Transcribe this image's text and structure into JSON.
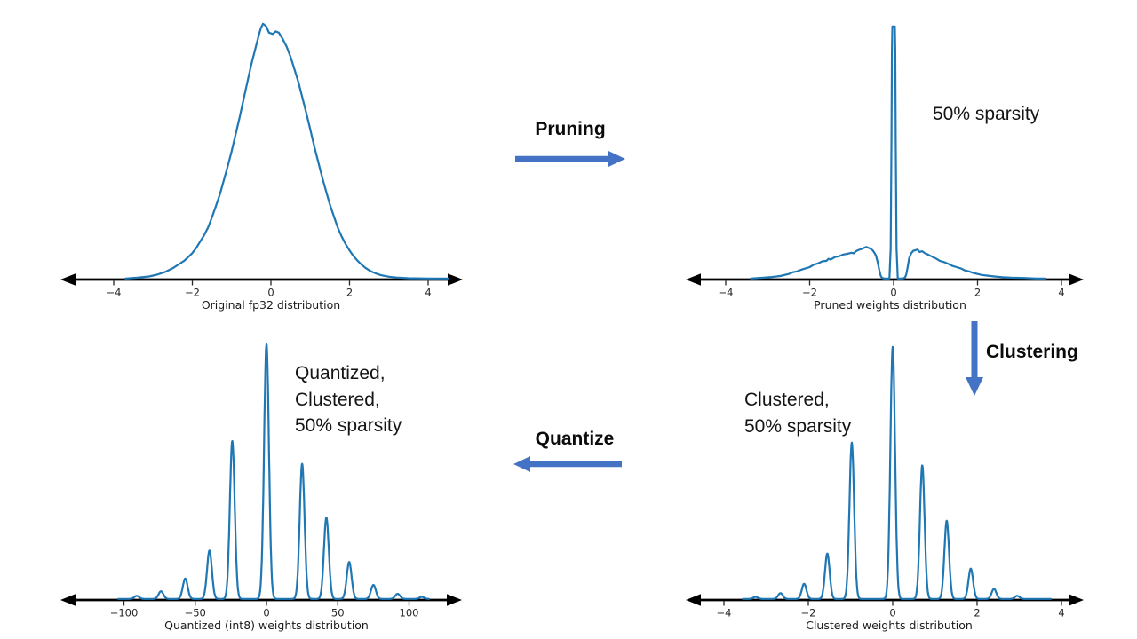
{
  "colors": {
    "curve": "#1f77b4",
    "arrow": "#4472c4",
    "axis": "#000000",
    "chart_text": "#262626"
  },
  "flow": {
    "pruning_label": "Pruning",
    "clustering_label": "Clustering",
    "quantize_label": "Quantize"
  },
  "chart_data": [
    {
      "id": "original",
      "type": "line",
      "xlabel": "Original fp32 distribution",
      "xticks": [
        -4,
        -2,
        0,
        2,
        4
      ],
      "xtick_labels": [
        "−4",
        "−2",
        "0",
        "2",
        "4"
      ],
      "xlim": [
        -5.3,
        4.9
      ],
      "ylim": [
        0,
        1.05
      ],
      "grid": false,
      "curve": {
        "kind": "points",
        "points": [
          [
            -3.7,
            0
          ],
          [
            -3.4,
            0.003
          ],
          [
            -3.1,
            0.008
          ],
          [
            -2.9,
            0.015
          ],
          [
            -2.7,
            0.025
          ],
          [
            -2.5,
            0.04
          ],
          [
            -2.35,
            0.055
          ],
          [
            -2.2,
            0.07
          ],
          [
            -2.1,
            0.085
          ],
          [
            -2.0,
            0.1
          ],
          [
            -1.9,
            0.12
          ],
          [
            -1.8,
            0.145
          ],
          [
            -1.7,
            0.17
          ],
          [
            -1.6,
            0.2
          ],
          [
            -1.5,
            0.24
          ],
          [
            -1.4,
            0.285
          ],
          [
            -1.3,
            0.33
          ],
          [
            -1.2,
            0.385
          ],
          [
            -1.1,
            0.44
          ],
          [
            -1.0,
            0.5
          ],
          [
            -0.9,
            0.565
          ],
          [
            -0.8,
            0.63
          ],
          [
            -0.7,
            0.7
          ],
          [
            -0.6,
            0.77
          ],
          [
            -0.5,
            0.84
          ],
          [
            -0.4,
            0.9
          ],
          [
            -0.3,
            0.96
          ],
          [
            -0.25,
            0.985
          ],
          [
            -0.2,
            1.0
          ],
          [
            -0.12,
            0.99
          ],
          [
            -0.05,
            0.965
          ],
          [
            0.05,
            0.96
          ],
          [
            0.12,
            0.97
          ],
          [
            0.2,
            0.965
          ],
          [
            0.3,
            0.94
          ],
          [
            0.4,
            0.91
          ],
          [
            0.5,
            0.87
          ],
          [
            0.6,
            0.82
          ],
          [
            0.7,
            0.77
          ],
          [
            0.8,
            0.71
          ],
          [
            0.9,
            0.65
          ],
          [
            1.0,
            0.585
          ],
          [
            1.1,
            0.52
          ],
          [
            1.2,
            0.46
          ],
          [
            1.3,
            0.4
          ],
          [
            1.4,
            0.345
          ],
          [
            1.5,
            0.29
          ],
          [
            1.6,
            0.245
          ],
          [
            1.7,
            0.2
          ],
          [
            1.8,
            0.165
          ],
          [
            1.9,
            0.135
          ],
          [
            2.0,
            0.11
          ],
          [
            2.1,
            0.088
          ],
          [
            2.2,
            0.07
          ],
          [
            2.3,
            0.055
          ],
          [
            2.4,
            0.042
          ],
          [
            2.5,
            0.032
          ],
          [
            2.6,
            0.024
          ],
          [
            2.7,
            0.018
          ],
          [
            2.8,
            0.013
          ],
          [
            3.0,
            0.007
          ],
          [
            3.2,
            0.004
          ],
          [
            3.5,
            0.001
          ],
          [
            4.0,
            0
          ],
          [
            4.5,
            0
          ]
        ]
      }
    },
    {
      "id": "pruned",
      "type": "line",
      "xlabel": "Pruned weights distribution",
      "annotation": {
        "lines": [
          "50% sparsity"
        ]
      },
      "xticks": [
        -4,
        -2,
        0,
        2,
        4
      ],
      "xtick_labels": [
        "−4",
        "−2",
        "0",
        "2",
        "4"
      ],
      "xlim": [
        -5.0,
        4.5
      ],
      "ylim": [
        0,
        1.05
      ],
      "grid": false,
      "curve": {
        "kind": "points",
        "points": [
          [
            -3.4,
            0
          ],
          [
            -3.1,
            0.003
          ],
          [
            -2.9,
            0.006
          ],
          [
            -2.7,
            0.01
          ],
          [
            -2.5,
            0.018
          ],
          [
            -2.4,
            0.025
          ],
          [
            -2.3,
            0.028
          ],
          [
            -2.2,
            0.035
          ],
          [
            -2.1,
            0.04
          ],
          [
            -2.0,
            0.045
          ],
          [
            -1.9,
            0.055
          ],
          [
            -1.8,
            0.06
          ],
          [
            -1.7,
            0.068
          ],
          [
            -1.6,
            0.07
          ],
          [
            -1.55,
            0.078
          ],
          [
            -1.5,
            0.075
          ],
          [
            -1.4,
            0.085
          ],
          [
            -1.3,
            0.088
          ],
          [
            -1.2,
            0.095
          ],
          [
            -1.1,
            0.098
          ],
          [
            -1.0,
            0.102
          ],
          [
            -0.95,
            0.1
          ],
          [
            -0.9,
            0.108
          ],
          [
            -0.85,
            0.112
          ],
          [
            -0.8,
            0.115
          ],
          [
            -0.75,
            0.118
          ],
          [
            -0.7,
            0.122
          ],
          [
            -0.65,
            0.125
          ],
          [
            -0.6,
            0.122
          ],
          [
            -0.55,
            0.118
          ],
          [
            -0.5,
            0.112
          ],
          [
            -0.45,
            0.1
          ],
          [
            -0.42,
            0.09
          ],
          [
            -0.38,
            0.065
          ],
          [
            -0.35,
            0.04
          ],
          [
            -0.32,
            0.018
          ],
          [
            -0.3,
            0.008
          ],
          [
            -0.27,
            0.002
          ],
          [
            -0.22,
            0
          ],
          [
            -0.15,
            0
          ],
          [
            -0.1,
            0
          ],
          [
            -0.07,
            0.12
          ],
          [
            -0.05,
            0.55
          ],
          [
            -0.04,
            0.9
          ],
          [
            -0.03,
            1.0
          ],
          [
            0.03,
            1.0
          ],
          [
            0.04,
            0.9
          ],
          [
            0.05,
            0.55
          ],
          [
            0.07,
            0.12
          ],
          [
            0.1,
            0
          ],
          [
            0.15,
            0
          ],
          [
            0.22,
            0
          ],
          [
            0.27,
            0.004
          ],
          [
            0.3,
            0.015
          ],
          [
            0.33,
            0.04
          ],
          [
            0.37,
            0.08
          ],
          [
            0.42,
            0.1
          ],
          [
            0.47,
            0.11
          ],
          [
            0.52,
            0.112
          ],
          [
            0.57,
            0.115
          ],
          [
            0.62,
            0.105
          ],
          [
            0.68,
            0.108
          ],
          [
            0.75,
            0.1
          ],
          [
            0.82,
            0.095
          ],
          [
            0.9,
            0.088
          ],
          [
            1.0,
            0.08
          ],
          [
            1.1,
            0.07
          ],
          [
            1.2,
            0.065
          ],
          [
            1.3,
            0.058
          ],
          [
            1.4,
            0.05
          ],
          [
            1.5,
            0.045
          ],
          [
            1.6,
            0.04
          ],
          [
            1.7,
            0.032
          ],
          [
            1.8,
            0.028
          ],
          [
            1.9,
            0.022
          ],
          [
            2.0,
            0.018
          ],
          [
            2.1,
            0.014
          ],
          [
            2.2,
            0.012
          ],
          [
            2.4,
            0.008
          ],
          [
            2.6,
            0.005
          ],
          [
            2.8,
            0.003
          ],
          [
            3.1,
            0.002
          ],
          [
            3.4,
            0
          ],
          [
            3.6,
            0
          ]
        ]
      }
    },
    {
      "id": "clustered",
      "type": "line",
      "xlabel": "Clustered weights distribution",
      "annotation": {
        "lines": [
          "Clustered,",
          "50% sparsity"
        ]
      },
      "xticks": [
        -4,
        -2,
        0,
        2,
        4
      ],
      "xtick_labels": [
        "−4",
        "−2",
        "0",
        "2",
        "4"
      ],
      "xlim": [
        -5.0,
        4.5
      ],
      "ylim": [
        0,
        1.05
      ],
      "grid": false,
      "curve": {
        "kind": "spikes",
        "span": [
          -3.55,
          3.75
        ],
        "sigma": 0.055,
        "spikes": [
          [
            -3.25,
            0.008
          ],
          [
            -2.66,
            0.023
          ],
          [
            -2.1,
            0.06
          ],
          [
            -1.55,
            0.18
          ],
          [
            -0.97,
            0.62
          ],
          [
            0,
            1.0
          ],
          [
            0.7,
            0.53
          ],
          [
            1.28,
            0.31
          ],
          [
            1.85,
            0.12
          ],
          [
            2.4,
            0.04
          ],
          [
            2.95,
            0.012
          ]
        ]
      }
    },
    {
      "id": "quantized",
      "type": "line",
      "xlabel": "Quantized (int8) weights distribution",
      "annotation": {
        "lines": [
          "Quantized,",
          "Clustered,",
          "50% sparsity"
        ]
      },
      "xticks": [
        -100,
        -50,
        0,
        50,
        100
      ],
      "xtick_labels": [
        "−100",
        "−50",
        "0",
        "50",
        "100"
      ],
      "xlim": [
        -145,
        137
      ],
      "ylim": [
        0,
        1.05
      ],
      "grid": false,
      "curve": {
        "kind": "spikes",
        "span": [
          -104,
          114
        ],
        "sigma": 1.7,
        "spikes": [
          [
            -91,
            0.012
          ],
          [
            -74,
            0.03
          ],
          [
            -57,
            0.08
          ],
          [
            -40,
            0.19
          ],
          [
            -24,
            0.62
          ],
          [
            0,
            1.0
          ],
          [
            25,
            0.53
          ],
          [
            42,
            0.32
          ],
          [
            58,
            0.145
          ],
          [
            75,
            0.055
          ],
          [
            92,
            0.02
          ],
          [
            109,
            0.008
          ]
        ]
      }
    }
  ]
}
